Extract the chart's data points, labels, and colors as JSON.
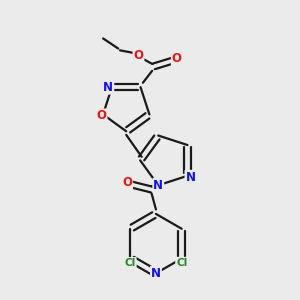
{
  "bg_color": "#ebebeb",
  "bond_color": "#1a1a1a",
  "bond_width": 1.6,
  "atom_colors": {
    "O": "#ee1111",
    "N": "#1111ee",
    "Cl": "#228822",
    "C": "#1a1a1a"
  },
  "font_size_atom": 8.5,
  "font_size_cl": 7.5,
  "scale": 1.0
}
